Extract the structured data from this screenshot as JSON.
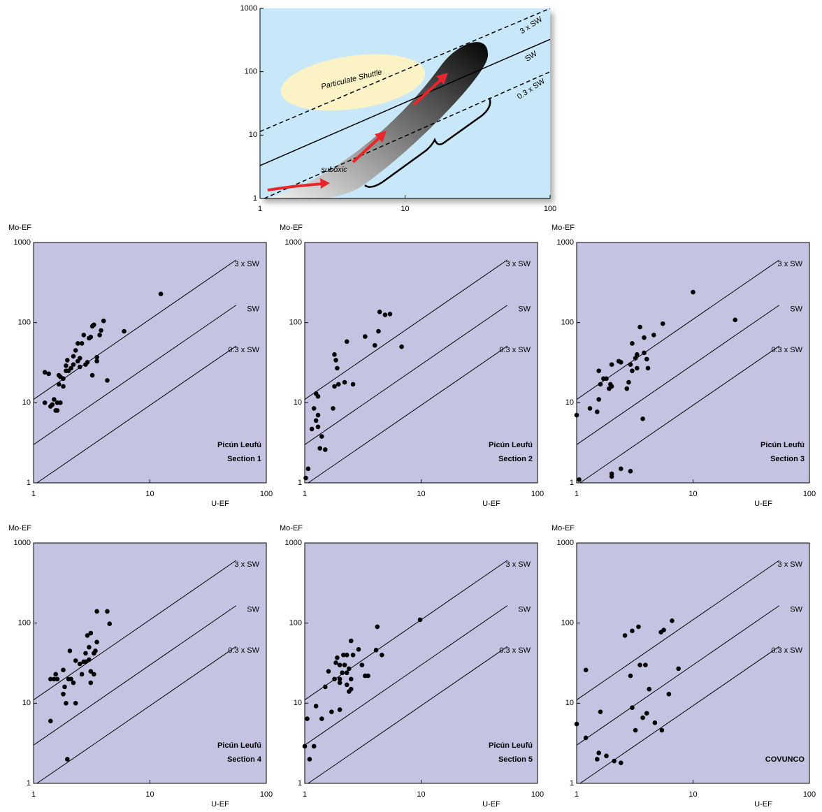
{
  "chart_data": [
    {
      "type": "line",
      "log": true,
      "background": "#c8e8f9",
      "xlim": [
        1,
        100
      ],
      "ylim": [
        1,
        1000
      ],
      "xticks": [
        1,
        10,
        100
      ],
      "yticks": [
        1,
        10,
        100,
        1000
      ],
      "annotations": [
        "Particulate Shuttle",
        "suboxic"
      ],
      "lines": [
        {
          "name": "3 x SW",
          "style": "dashed",
          "x": [
            1,
            100
          ],
          "y": [
            11.4,
            1000
          ]
        },
        {
          "name": "SW",
          "style": "solid",
          "x": [
            1,
            100
          ],
          "y": [
            3.3,
            325
          ]
        },
        {
          "name": "0.3 x SW",
          "style": "dashed",
          "x": [
            1.07,
            100
          ],
          "y": [
            1,
            100
          ]
        }
      ]
    },
    {
      "type": "scatter",
      "log": true,
      "background": "#c4c3e1",
      "title": "Picún Leufú",
      "subtitle": "Section 1",
      "xlabel": "U-EF",
      "ylabel": "Mo-EF",
      "xlim": [
        1,
        100
      ],
      "ylim": [
        1,
        1000
      ],
      "xticks": [
        1,
        10,
        100
      ],
      "yticks": [
        1,
        10,
        100,
        1000
      ],
      "lines": [
        {
          "name": "3 x SW",
          "x": [
            1,
            55
          ],
          "y": [
            11,
            605
          ]
        },
        {
          "name": "SW",
          "x": [
            1,
            55
          ],
          "y": [
            3,
            165
          ]
        },
        {
          "name": "0.3 x SW",
          "x": [
            1.07,
            55
          ],
          "y": [
            1,
            51
          ]
        }
      ],
      "points": [
        [
          1.25,
          24
        ],
        [
          1.35,
          23
        ],
        [
          1.25,
          10
        ],
        [
          1.4,
          9
        ],
        [
          1.45,
          9.5
        ],
        [
          1.5,
          11
        ],
        [
          1.55,
          8
        ],
        [
          1.6,
          8
        ],
        [
          1.6,
          10
        ],
        [
          1.7,
          10
        ],
        [
          1.65,
          17
        ],
        [
          1.65,
          22
        ],
        [
          1.7,
          21
        ],
        [
          1.8,
          20
        ],
        [
          1.8,
          16
        ],
        [
          1.9,
          25
        ],
        [
          1.9,
          29
        ],
        [
          1.95,
          34
        ],
        [
          2.0,
          25
        ],
        [
          2.1,
          27
        ],
        [
          2.2,
          30
        ],
        [
          2.2,
          38
        ],
        [
          2.3,
          45
        ],
        [
          2.4,
          33
        ],
        [
          2.4,
          55
        ],
        [
          2.5,
          36
        ],
        [
          2.5,
          28
        ],
        [
          2.6,
          55
        ],
        [
          2.7,
          70
        ],
        [
          2.8,
          30
        ],
        [
          2.9,
          32
        ],
        [
          3.0,
          64
        ],
        [
          3.1,
          66
        ],
        [
          3.2,
          90
        ],
        [
          3.3,
          94
        ],
        [
          3.2,
          22
        ],
        [
          3.5,
          33
        ],
        [
          3.5,
          37
        ],
        [
          3.7,
          70
        ],
        [
          3.8,
          80
        ],
        [
          4.0,
          105
        ],
        [
          4.3,
          19
        ],
        [
          6.0,
          78
        ],
        [
          12.4,
          228
        ]
      ]
    },
    {
      "type": "scatter",
      "log": true,
      "background": "#c4c3e1",
      "title": "Picún Leufú",
      "subtitle": "Section 2",
      "xlabel": "U-EF",
      "ylabel": "Mo-EF",
      "xlim": [
        1,
        100
      ],
      "ylim": [
        1,
        1000
      ],
      "xticks": [
        1,
        10,
        100
      ],
      "yticks": [
        1,
        10,
        100,
        1000
      ],
      "lines": [
        {
          "name": "3 x SW",
          "x": [
            1,
            55
          ],
          "y": [
            11,
            605
          ]
        },
        {
          "name": "SW",
          "x": [
            1,
            55
          ],
          "y": [
            3,
            165
          ]
        },
        {
          "name": "0.3 x SW",
          "x": [
            1.07,
            55
          ],
          "y": [
            1,
            51
          ]
        }
      ],
      "points": [
        [
          1.02,
          1.15
        ],
        [
          1.07,
          1.5
        ],
        [
          1.15,
          4.7
        ],
        [
          1.2,
          8.5
        ],
        [
          1.25,
          6
        ],
        [
          1.25,
          13
        ],
        [
          1.3,
          12
        ],
        [
          1.3,
          7
        ],
        [
          1.3,
          5
        ],
        [
          1.35,
          2.7
        ],
        [
          1.4,
          3.8
        ],
        [
          1.5,
          2.6
        ],
        [
          1.75,
          8.5
        ],
        [
          1.8,
          40
        ],
        [
          1.8,
          16
        ],
        [
          1.85,
          34
        ],
        [
          1.9,
          27
        ],
        [
          1.95,
          17
        ],
        [
          2.2,
          18
        ],
        [
          2.3,
          58
        ],
        [
          2.6,
          17
        ],
        [
          3.3,
          67
        ],
        [
          4.0,
          52
        ],
        [
          4.3,
          78
        ],
        [
          4.4,
          136
        ],
        [
          4.9,
          125
        ],
        [
          5.4,
          128
        ],
        [
          6.8,
          50
        ]
      ]
    },
    {
      "type": "scatter",
      "log": true,
      "background": "#c4c3e1",
      "title": "Picún Leufú",
      "subtitle": "Section 3",
      "xlabel": "U-EF",
      "ylabel": "Mo-EF",
      "xlim": [
        1,
        100
      ],
      "ylim": [
        1,
        1000
      ],
      "xticks": [
        1,
        10,
        100
      ],
      "yticks": [
        1,
        10,
        100,
        1000
      ],
      "lines": [
        {
          "name": "3 x SW",
          "x": [
            1,
            55
          ],
          "y": [
            11,
            605
          ]
        },
        {
          "name": "SW",
          "x": [
            1,
            55
          ],
          "y": [
            3,
            165
          ]
        },
        {
          "name": "0.3 x SW",
          "x": [
            1.07,
            55
          ],
          "y": [
            1,
            51
          ]
        }
      ],
      "points": [
        [
          1.0,
          7
        ],
        [
          1.05,
          1.1
        ],
        [
          1.3,
          8.5
        ],
        [
          1.5,
          7.7
        ],
        [
          1.55,
          11
        ],
        [
          1.55,
          25
        ],
        [
          1.6,
          17
        ],
        [
          1.7,
          20
        ],
        [
          1.8,
          20
        ],
        [
          1.9,
          15
        ],
        [
          1.95,
          17
        ],
        [
          2.0,
          30
        ],
        [
          2.0,
          16
        ],
        [
          2.0,
          1.2
        ],
        [
          2.0,
          1.3
        ],
        [
          2.3,
          33
        ],
        [
          2.4,
          32
        ],
        [
          2.4,
          1.5
        ],
        [
          2.7,
          15
        ],
        [
          2.8,
          18
        ],
        [
          2.9,
          1.4
        ],
        [
          2.9,
          30
        ],
        [
          3.0,
          55
        ],
        [
          3.0,
          25
        ],
        [
          3.2,
          36
        ],
        [
          3.3,
          27
        ],
        [
          3.3,
          40
        ],
        [
          3.5,
          88
        ],
        [
          3.7,
          6.3
        ],
        [
          3.8,
          42
        ],
        [
          3.8,
          65
        ],
        [
          4.0,
          35
        ],
        [
          4.1,
          27
        ],
        [
          4.6,
          70
        ],
        [
          5.5,
          97
        ],
        [
          10,
          240
        ],
        [
          23,
          108
        ]
      ]
    },
    {
      "type": "scatter",
      "log": true,
      "background": "#c4c3e1",
      "title": "Picún Leufú",
      "subtitle": "Section 4",
      "xlabel": "U-EF",
      "ylabel": "Mo-EF",
      "xlim": [
        1,
        100
      ],
      "ylim": [
        1,
        1000
      ],
      "xticks": [
        1,
        10,
        100
      ],
      "yticks": [
        1,
        10,
        100,
        1000
      ],
      "lines": [
        {
          "name": "3 x SW",
          "x": [
            1,
            55
          ],
          "y": [
            11,
            605
          ]
        },
        {
          "name": "SW",
          "x": [
            1,
            55
          ],
          "y": [
            3,
            165
          ]
        },
        {
          "name": "0.3 x SW",
          "x": [
            1.07,
            55
          ],
          "y": [
            1,
            51
          ]
        }
      ],
      "points": [
        [
          1.4,
          6
        ],
        [
          1.4,
          20
        ],
        [
          1.5,
          20
        ],
        [
          1.55,
          23
        ],
        [
          1.6,
          20
        ],
        [
          1.8,
          26
        ],
        [
          1.8,
          13
        ],
        [
          1.85,
          16
        ],
        [
          1.9,
          10
        ],
        [
          1.95,
          2
        ],
        [
          2.0,
          20
        ],
        [
          2.05,
          45
        ],
        [
          2.1,
          20
        ],
        [
          2.2,
          18
        ],
        [
          2.3,
          10
        ],
        [
          2.3,
          34
        ],
        [
          2.5,
          31
        ],
        [
          2.6,
          23
        ],
        [
          2.7,
          33
        ],
        [
          2.8,
          42
        ],
        [
          2.8,
          33
        ],
        [
          2.9,
          70
        ],
        [
          3.0,
          50
        ],
        [
          3.0,
          35
        ],
        [
          3.1,
          75
        ],
        [
          3.1,
          18
        ],
        [
          3.1,
          25
        ],
        [
          3.3,
          23
        ],
        [
          3.3,
          42
        ],
        [
          3.4,
          45
        ],
        [
          3.5,
          58
        ],
        [
          3.5,
          140
        ],
        [
          4.3,
          140
        ],
        [
          4.5,
          98
        ]
      ]
    },
    {
      "type": "scatter",
      "log": true,
      "background": "#c4c3e1",
      "title": "Picún Leufú",
      "subtitle": "Section 5",
      "xlabel": "U-EF",
      "ylabel": "Mo-EF",
      "xlim": [
        1,
        100
      ],
      "ylim": [
        1,
        1000
      ],
      "xticks": [
        1,
        10,
        100
      ],
      "yticks": [
        1,
        10,
        100,
        1000
      ],
      "lines": [
        {
          "name": "3 x SW",
          "x": [
            1,
            55
          ],
          "y": [
            11,
            605
          ]
        },
        {
          "name": "SW",
          "x": [
            1,
            55
          ],
          "y": [
            3,
            165
          ]
        },
        {
          "name": "0.3 x SW",
          "x": [
            1.07,
            55
          ],
          "y": [
            1,
            51
          ]
        }
      ],
      "points": [
        [
          1.0,
          2.9
        ],
        [
          1.05,
          6.4
        ],
        [
          1.1,
          2.0
        ],
        [
          1.2,
          2.9
        ],
        [
          1.25,
          9.2
        ],
        [
          1.4,
          6.4
        ],
        [
          1.5,
          16
        ],
        [
          1.6,
          25
        ],
        [
          1.7,
          7.8
        ],
        [
          1.8,
          20
        ],
        [
          1.85,
          32
        ],
        [
          1.9,
          37
        ],
        [
          2.0,
          30
        ],
        [
          2.0,
          8.3
        ],
        [
          2.0,
          20
        ],
        [
          2.0,
          18
        ],
        [
          2.1,
          24
        ],
        [
          2.15,
          40
        ],
        [
          2.2,
          30
        ],
        [
          2.3,
          24
        ],
        [
          2.3,
          17
        ],
        [
          2.3,
          40
        ],
        [
          2.4,
          27
        ],
        [
          2.4,
          14
        ],
        [
          2.5,
          60
        ],
        [
          2.5,
          20
        ],
        [
          2.5,
          15
        ],
        [
          2.6,
          40
        ],
        [
          2.9,
          47
        ],
        [
          3.1,
          30
        ],
        [
          3.3,
          22
        ],
        [
          3.5,
          22
        ],
        [
          4.1,
          46
        ],
        [
          4.2,
          90
        ],
        [
          4.6,
          40
        ],
        [
          9.8,
          110
        ]
      ]
    },
    {
      "type": "scatter",
      "log": true,
      "background": "#c4c3e1",
      "title": "COVUNCO",
      "xlabel": "U-EF",
      "ylabel": "Mo-EF",
      "xlim": [
        1,
        100
      ],
      "ylim": [
        1,
        1000
      ],
      "xticks": [
        1,
        10,
        100
      ],
      "yticks": [
        1,
        10,
        100,
        1000
      ],
      "lines": [
        {
          "name": "3 x SW",
          "x": [
            1,
            55
          ],
          "y": [
            11,
            605
          ]
        },
        {
          "name": "SW",
          "x": [
            1,
            55
          ],
          "y": [
            3,
            165
          ]
        },
        {
          "name": "0.3 x SW",
          "x": [
            1.07,
            55
          ],
          "y": [
            1,
            51
          ]
        }
      ],
      "points": [
        [
          1.0,
          5.5
        ],
        [
          1.2,
          26
        ],
        [
          1.2,
          3.7
        ],
        [
          1.5,
          2.0
        ],
        [
          1.55,
          2.4
        ],
        [
          1.6,
          7.8
        ],
        [
          1.8,
          2.2
        ],
        [
          2.1,
          1.9
        ],
        [
          2.4,
          1.8
        ],
        [
          2.6,
          70
        ],
        [
          2.9,
          22
        ],
        [
          3.0,
          80
        ],
        [
          3.0,
          8.8
        ],
        [
          3.2,
          4.6
        ],
        [
          3.4,
          90
        ],
        [
          3.5,
          30
        ],
        [
          3.7,
          6.6
        ],
        [
          3.9,
          30
        ],
        [
          4.0,
          7.5
        ],
        [
          4.2,
          15
        ],
        [
          4.7,
          5.7
        ],
        [
          5.3,
          77
        ],
        [
          5.4,
          4.6
        ],
        [
          5.6,
          82
        ],
        [
          6.2,
          13
        ],
        [
          6.6,
          107
        ],
        [
          7.5,
          27
        ]
      ]
    }
  ]
}
